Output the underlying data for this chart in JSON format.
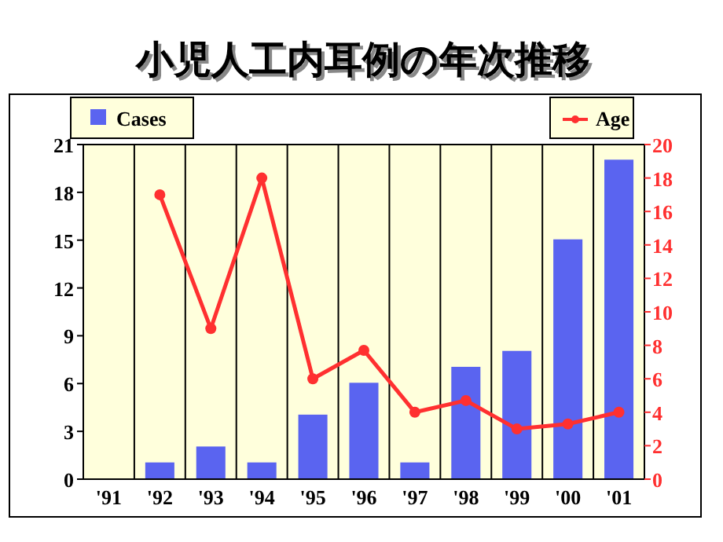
{
  "chart_data": {
    "type": "bar",
    "title": "小児人工内耳例の年次推移",
    "categories": [
      "'91",
      "'92",
      "'93",
      "'94",
      "'95",
      "'96",
      "'97",
      "'98",
      "'99",
      "'00",
      "'01"
    ],
    "series": [
      {
        "name": "Cases",
        "color": "#5a64f0",
        "values": [
          0,
          1,
          2,
          1,
          4,
          6,
          1,
          7,
          8,
          15,
          20
        ]
      },
      {
        "name": "Age",
        "type": "line",
        "axis": "y2",
        "color": "#ff3030",
        "marker": "circle",
        "values": [
          null,
          17,
          9,
          18,
          6,
          7.7,
          4,
          4.7,
          3,
          3.3,
          4
        ]
      }
    ],
    "ylim": [
      0,
      21
    ],
    "yticks": [
      0,
      3,
      6,
      9,
      12,
      15,
      18,
      21
    ],
    "y2lim": [
      0,
      20
    ],
    "y2ticks": [
      0,
      2,
      4,
      6,
      8,
      10,
      12,
      14,
      16,
      18,
      20
    ],
    "grid": "x",
    "legend": "top"
  }
}
